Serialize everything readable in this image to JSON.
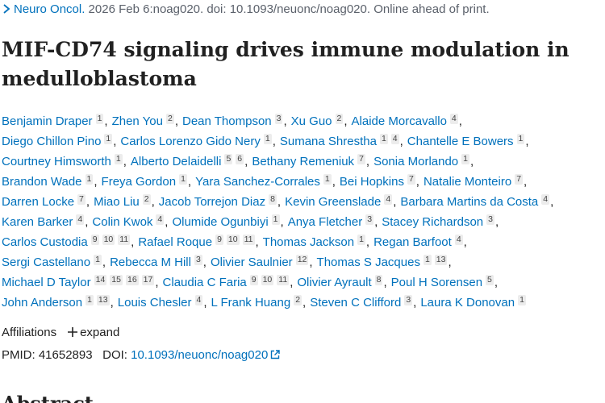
{
  "citation": {
    "journal": "Neuro Oncol.",
    "details": "2026 Feb 6:noag020. doi: 10.1093/neuonc/noag020. Online ahead of print."
  },
  "title": "MIF-CD74 signaling drives immune modulation in medulloblastoma",
  "separator": ",",
  "author_lines": [
    [
      {
        "name": "Benjamin Draper",
        "affiliations": [
          1
        ]
      },
      {
        "name": "Zhen You",
        "affiliations": [
          2
        ]
      },
      {
        "name": "Dean Thompson",
        "affiliations": [
          3
        ]
      },
      {
        "name": "Xu Guo",
        "affiliations": [
          2
        ]
      },
      {
        "name": "Alaide Morcavallo",
        "affiliations": [
          4
        ]
      }
    ],
    [
      {
        "name": "Diego Chillon Pino",
        "affiliations": [
          1
        ]
      },
      {
        "name": "Carlos Lorenzo Gido Nery",
        "affiliations": [
          1
        ]
      },
      {
        "name": "Sumana Shrestha",
        "affiliations": [
          1,
          4
        ]
      },
      {
        "name": "Chantelle E Bowers",
        "affiliations": [
          1
        ]
      }
    ],
    [
      {
        "name": "Courtney Himsworth",
        "affiliations": [
          1
        ]
      },
      {
        "name": "Alberto Delaidelli",
        "affiliations": [
          5,
          6
        ]
      },
      {
        "name": "Bethany Remeniuk",
        "affiliations": [
          7
        ]
      },
      {
        "name": "Sonia Morlando",
        "affiliations": [
          1
        ]
      }
    ],
    [
      {
        "name": "Brandon Wade",
        "affiliations": [
          1
        ]
      },
      {
        "name": "Freya Gordon",
        "affiliations": [
          1
        ]
      },
      {
        "name": "Yara Sanchez-Corrales",
        "affiliations": [
          1
        ]
      },
      {
        "name": "Bei Hopkins",
        "affiliations": [
          7
        ]
      },
      {
        "name": "Natalie Monteiro",
        "affiliations": [
          7
        ]
      }
    ],
    [
      {
        "name": "Darren Locke",
        "affiliations": [
          7
        ]
      },
      {
        "name": "Miao Liu",
        "affiliations": [
          2
        ]
      },
      {
        "name": "Jacob Torrejon Diaz",
        "affiliations": [
          8
        ]
      },
      {
        "name": "Kevin Greenslade",
        "affiliations": [
          4
        ]
      },
      {
        "name": "Barbara Martins da Costa",
        "affiliations": [
          4
        ]
      }
    ],
    [
      {
        "name": "Karen Barker",
        "affiliations": [
          4
        ]
      },
      {
        "name": "Colin Kwok",
        "affiliations": [
          4
        ]
      },
      {
        "name": "Olumide Ogunbiyi",
        "affiliations": [
          1
        ]
      },
      {
        "name": "Anya Fletcher",
        "affiliations": [
          3
        ]
      },
      {
        "name": "Stacey Richardson",
        "affiliations": [
          3
        ]
      }
    ],
    [
      {
        "name": "Carlos Custodia",
        "affiliations": [
          9,
          10,
          11
        ]
      },
      {
        "name": "Rafael Roque",
        "affiliations": [
          9,
          10,
          11
        ]
      },
      {
        "name": "Thomas Jackson",
        "affiliations": [
          1
        ]
      },
      {
        "name": "Regan Barfoot",
        "affiliations": [
          4
        ]
      }
    ],
    [
      {
        "name": "Sergi Castellano",
        "affiliations": [
          1
        ]
      },
      {
        "name": "Rebecca M Hill",
        "affiliations": [
          3
        ]
      },
      {
        "name": "Olivier Saulnier",
        "affiliations": [
          12
        ]
      },
      {
        "name": "Thomas S Jacques",
        "affiliations": [
          1,
          13
        ]
      }
    ],
    [
      {
        "name": "Michael D Taylor",
        "affiliations": [
          14,
          15,
          16,
          17
        ]
      },
      {
        "name": "Claudia C Faria",
        "affiliations": [
          9,
          10,
          11
        ]
      },
      {
        "name": "Olivier Ayrault",
        "affiliations": [
          8
        ]
      },
      {
        "name": "Poul H Sorensen",
        "affiliations": [
          5
        ]
      }
    ],
    [
      {
        "name": "John Anderson",
        "affiliations": [
          1,
          13
        ]
      },
      {
        "name": "Louis Chesler",
        "affiliations": [
          4
        ]
      },
      {
        "name": "L Frank Huang",
        "affiliations": [
          2
        ]
      },
      {
        "name": "Steven C Clifford",
        "affiliations": [
          3
        ]
      },
      {
        "name": "Laura K Donovan",
        "affiliations": [
          1
        ]
      }
    ]
  ],
  "affiliations": {
    "label": "Affiliations",
    "toggle": "expand"
  },
  "identifiers": {
    "pmid_label": "PMID:",
    "pmid": "41652893",
    "doi_label": "DOI:",
    "doi": "10.1093/neuonc/noag020"
  },
  "abstract_heading": "Abstract"
}
